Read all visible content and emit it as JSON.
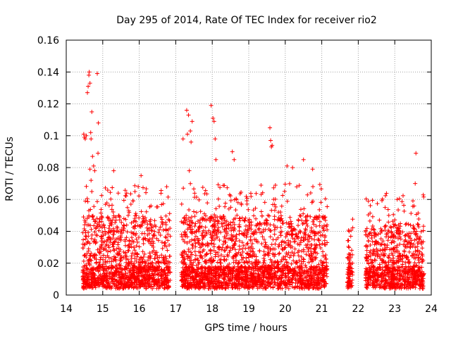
{
  "chart_data": {
    "type": "scatter",
    "title": "Day 295 of 2014, Rate Of TEC Index for receiver rio2",
    "xlabel": "GPS time / hours",
    "ylabel": "ROTI / TECUs",
    "xlim": [
      14,
      24
    ],
    "ylim": [
      0,
      0.16
    ],
    "x_ticks": [
      14,
      15,
      16,
      17,
      18,
      19,
      20,
      21,
      22,
      23,
      24
    ],
    "x_tick_labels": [
      "14",
      "15",
      "16",
      "17",
      "18",
      "19",
      "20",
      "21",
      "22",
      "23",
      "24"
    ],
    "y_ticks": [
      0,
      0.02,
      0.04,
      0.06,
      0.08,
      0.1,
      0.12,
      0.14,
      0.16
    ],
    "y_tick_labels": [
      "0",
      "0.02",
      "0.04",
      "0.06",
      "0.08",
      "0.1",
      "0.12",
      "0.14",
      "0.16"
    ],
    "grid": true,
    "marker": "+",
    "marker_color": "#ff0000",
    "segments": [
      {
        "x_start": 14.45,
        "x_end": 16.85,
        "typical_max": 0.05
      },
      {
        "x_start": 17.15,
        "x_end": 21.15,
        "typical_max": 0.05
      },
      {
        "x_start": 21.7,
        "x_end": 21.85,
        "typical_max": 0.03
      },
      {
        "x_start": 22.2,
        "x_end": 23.8,
        "typical_max": 0.045
      }
    ],
    "points": [
      [
        14.48,
        0.101
      ],
      [
        14.5,
        0.099
      ],
      [
        14.52,
        0.098
      ],
      [
        14.55,
        0.1
      ],
      [
        14.58,
        0.127
      ],
      [
        14.6,
        0.131
      ],
      [
        14.62,
        0.138
      ],
      [
        14.63,
        0.14
      ],
      [
        14.65,
        0.133
      ],
      [
        14.67,
        0.102
      ],
      [
        14.68,
        0.098
      ],
      [
        14.7,
        0.115
      ],
      [
        14.72,
        0.087
      ],
      [
        14.75,
        0.081
      ],
      [
        14.65,
        0.079
      ],
      [
        14.68,
        0.072
      ],
      [
        14.7,
        0.065
      ],
      [
        14.78,
        0.078
      ],
      [
        14.85,
        0.139
      ],
      [
        14.88,
        0.108
      ],
      [
        14.87,
        0.089
      ],
      [
        15.3,
        0.078
      ],
      [
        16.05,
        0.075
      ],
      [
        17.2,
        0.098
      ],
      [
        17.3,
        0.116
      ],
      [
        17.35,
        0.113
      ],
      [
        17.32,
        0.101
      ],
      [
        17.4,
        0.103
      ],
      [
        17.45,
        0.109
      ],
      [
        17.42,
        0.096
      ],
      [
        17.37,
        0.078
      ],
      [
        17.97,
        0.119
      ],
      [
        18.02,
        0.111
      ],
      [
        18.05,
        0.109
      ],
      [
        18.08,
        0.098
      ],
      [
        18.1,
        0.085
      ],
      [
        18.55,
        0.09
      ],
      [
        18.6,
        0.085
      ],
      [
        19.58,
        0.105
      ],
      [
        19.6,
        0.097
      ],
      [
        19.62,
        0.093
      ],
      [
        19.64,
        0.094
      ],
      [
        20.05,
        0.081
      ],
      [
        20.2,
        0.08
      ],
      [
        20.5,
        0.085
      ],
      [
        20.75,
        0.079
      ],
      [
        23.58,
        0.089
      ],
      [
        23.56,
        0.07
      ]
    ]
  }
}
